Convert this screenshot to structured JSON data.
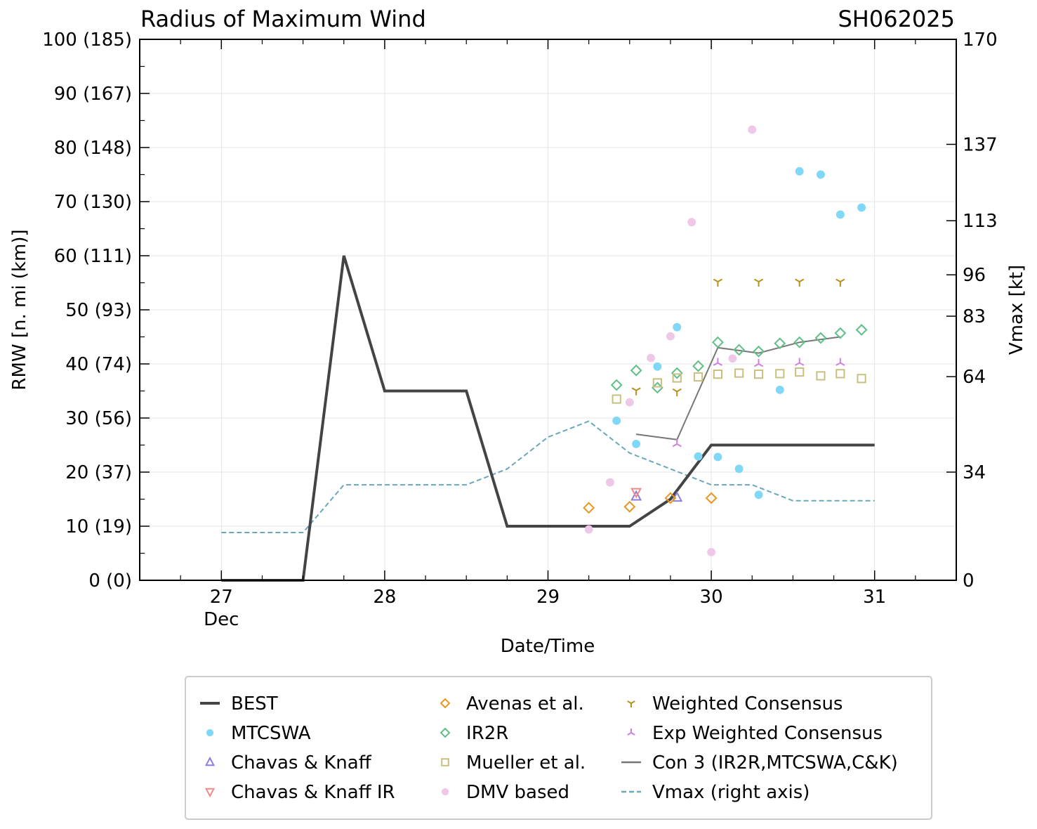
{
  "chart_data": {
    "type": "line",
    "title": "Radius of Maximum Wind",
    "storm_id": "SH062025",
    "xlabel": "Date/Time",
    "ylabel": "RMW [n. mi (km)]",
    "ylabel_right": "Vmax [kt]",
    "xlim": [
      26.5,
      31.5
    ],
    "ylim": [
      0,
      100
    ],
    "x_ticks": [
      27,
      28,
      29,
      30,
      31
    ],
    "x_tick_labels": [
      "27",
      "28",
      "29",
      "30",
      "31"
    ],
    "x_month_label": "Dec",
    "y_ticks": [
      0,
      10,
      20,
      30,
      40,
      50,
      60,
      70,
      80,
      90,
      100
    ],
    "y_tick_labels": [
      "0 (0)",
      "10 (19)",
      "20 (37)",
      "30 (56)",
      "40 (74)",
      "50 (93)",
      "60 (111)",
      "70 (130)",
      "80 (148)",
      "90 (167)",
      "100 (185)"
    ],
    "right_axis": {
      "ylim": [
        0,
        170
      ],
      "ticks": [
        0,
        34,
        64,
        83,
        96,
        113,
        137,
        170
      ],
      "tick_labels": [
        "0",
        "34",
        "64",
        "83",
        "96",
        "113",
        "137",
        "170"
      ]
    },
    "grid": true,
    "legend_position": "bottom-center",
    "series": [
      {
        "name": "BEST",
        "kind": "line",
        "color": "#444444",
        "x": [
          27.0,
          27.5,
          27.75,
          28.0,
          28.5,
          28.75,
          29.5,
          29.75,
          30.0,
          31.0
        ],
        "y": [
          0,
          0,
          60,
          35,
          35,
          10,
          10,
          15,
          25,
          25
        ]
      },
      {
        "name": "MTCSWA",
        "kind": "marker",
        "marker": "circle",
        "color": "#7fd8f8",
        "x": [
          29.42,
          29.54,
          29.67,
          29.79,
          29.92,
          30.04,
          30.17,
          30.29,
          30.42,
          30.54,
          30.67,
          30.79,
          30.92
        ],
        "y": [
          29.5,
          25.2,
          39.5,
          46.8,
          22.9,
          22.8,
          20.6,
          15.8,
          35.2,
          75.6,
          75,
          67.6,
          68.9
        ]
      },
      {
        "name": "Chavas & Knaff",
        "kind": "marker",
        "marker": "triangle-up",
        "color": "#8a7ee0",
        "x": [
          29.54,
          29.79
        ],
        "y": [
          15.5,
          15.3
        ]
      },
      {
        "name": "Chavas & Knaff IR",
        "kind": "marker",
        "marker": "triangle-down",
        "color": "#f08a8a",
        "x": [
          29.54
        ],
        "y": [
          16.3
        ]
      },
      {
        "name": "Avenas et al.",
        "kind": "marker",
        "marker": "diamond",
        "color": "#e8961e",
        "x": [
          29.25,
          29.5,
          29.75,
          30.0
        ],
        "y": [
          13.4,
          13.6,
          15.2,
          15.2
        ]
      },
      {
        "name": "IR2R",
        "kind": "marker",
        "marker": "diamond",
        "color": "#5fbf86",
        "x": [
          29.42,
          29.54,
          29.67,
          29.79,
          29.92,
          30.04,
          30.17,
          30.29,
          30.42,
          30.54,
          30.67,
          30.79,
          30.92
        ],
        "y": [
          36.1,
          38.8,
          35.6,
          38.3,
          39.6,
          44,
          42.6,
          42.3,
          43.8,
          44,
          44.8,
          45.7,
          46.3
        ]
      },
      {
        "name": "Mueller et al.",
        "kind": "marker",
        "marker": "square",
        "color": "#c8c080",
        "x": [
          29.42,
          29.67,
          29.79,
          29.92,
          30.04,
          30.17,
          30.29,
          30.42,
          30.54,
          30.67,
          30.79,
          30.92
        ],
        "y": [
          33.5,
          36.5,
          37.4,
          37.6,
          38.1,
          38.3,
          38.1,
          38.2,
          38.5,
          37.8,
          38.2,
          37.3
        ]
      },
      {
        "name": "DMV based",
        "kind": "marker",
        "marker": "circle",
        "color": "#efc8e8",
        "x": [
          29.25,
          29.38,
          29.5,
          29.63,
          29.75,
          29.88,
          30.0,
          30.13,
          30.25
        ],
        "y": [
          9.4,
          18.1,
          32.9,
          41.1,
          45.1,
          66.2,
          5.2,
          41,
          83.3
        ]
      },
      {
        "name": "Weighted Consensus",
        "kind": "marker",
        "marker": "tri-down",
        "color": "#b8901c",
        "x": [
          29.54,
          29.79,
          30.04,
          30.29,
          30.54,
          30.79
        ],
        "y": [
          35.1,
          34.9,
          55.2,
          55.2,
          55.2,
          55.2
        ]
      },
      {
        "name": "Exp Weighted Consensus",
        "kind": "marker",
        "marker": "tri-up",
        "color": "#d080e0",
        "x": [
          29.79,
          30.04,
          30.29,
          30.54,
          30.79
        ],
        "y": [
          25.2,
          40.2,
          40,
          40.2,
          40.2
        ]
      },
      {
        "name": "Con 3 (IR2R,MTCSWA,C&K)",
        "kind": "line",
        "color": "#777777",
        "x": [
          29.54,
          29.79,
          30.04,
          30.29,
          30.54,
          30.79
        ],
        "y": [
          27,
          26,
          43,
          42,
          44,
          45
        ]
      },
      {
        "name": "Vmax (right axis)",
        "kind": "line",
        "dashed": true,
        "axis": "right",
        "color": "#6aa7b8",
        "x": [
          27.0,
          27.5,
          27.75,
          28.0,
          28.5,
          28.75,
          29.0,
          29.25,
          29.5,
          29.75,
          30.0,
          30.25,
          30.5,
          31.0
        ],
        "y": [
          15,
          15,
          30,
          30,
          30,
          35,
          45,
          50,
          40,
          35,
          30,
          30,
          25,
          25
        ]
      }
    ]
  }
}
